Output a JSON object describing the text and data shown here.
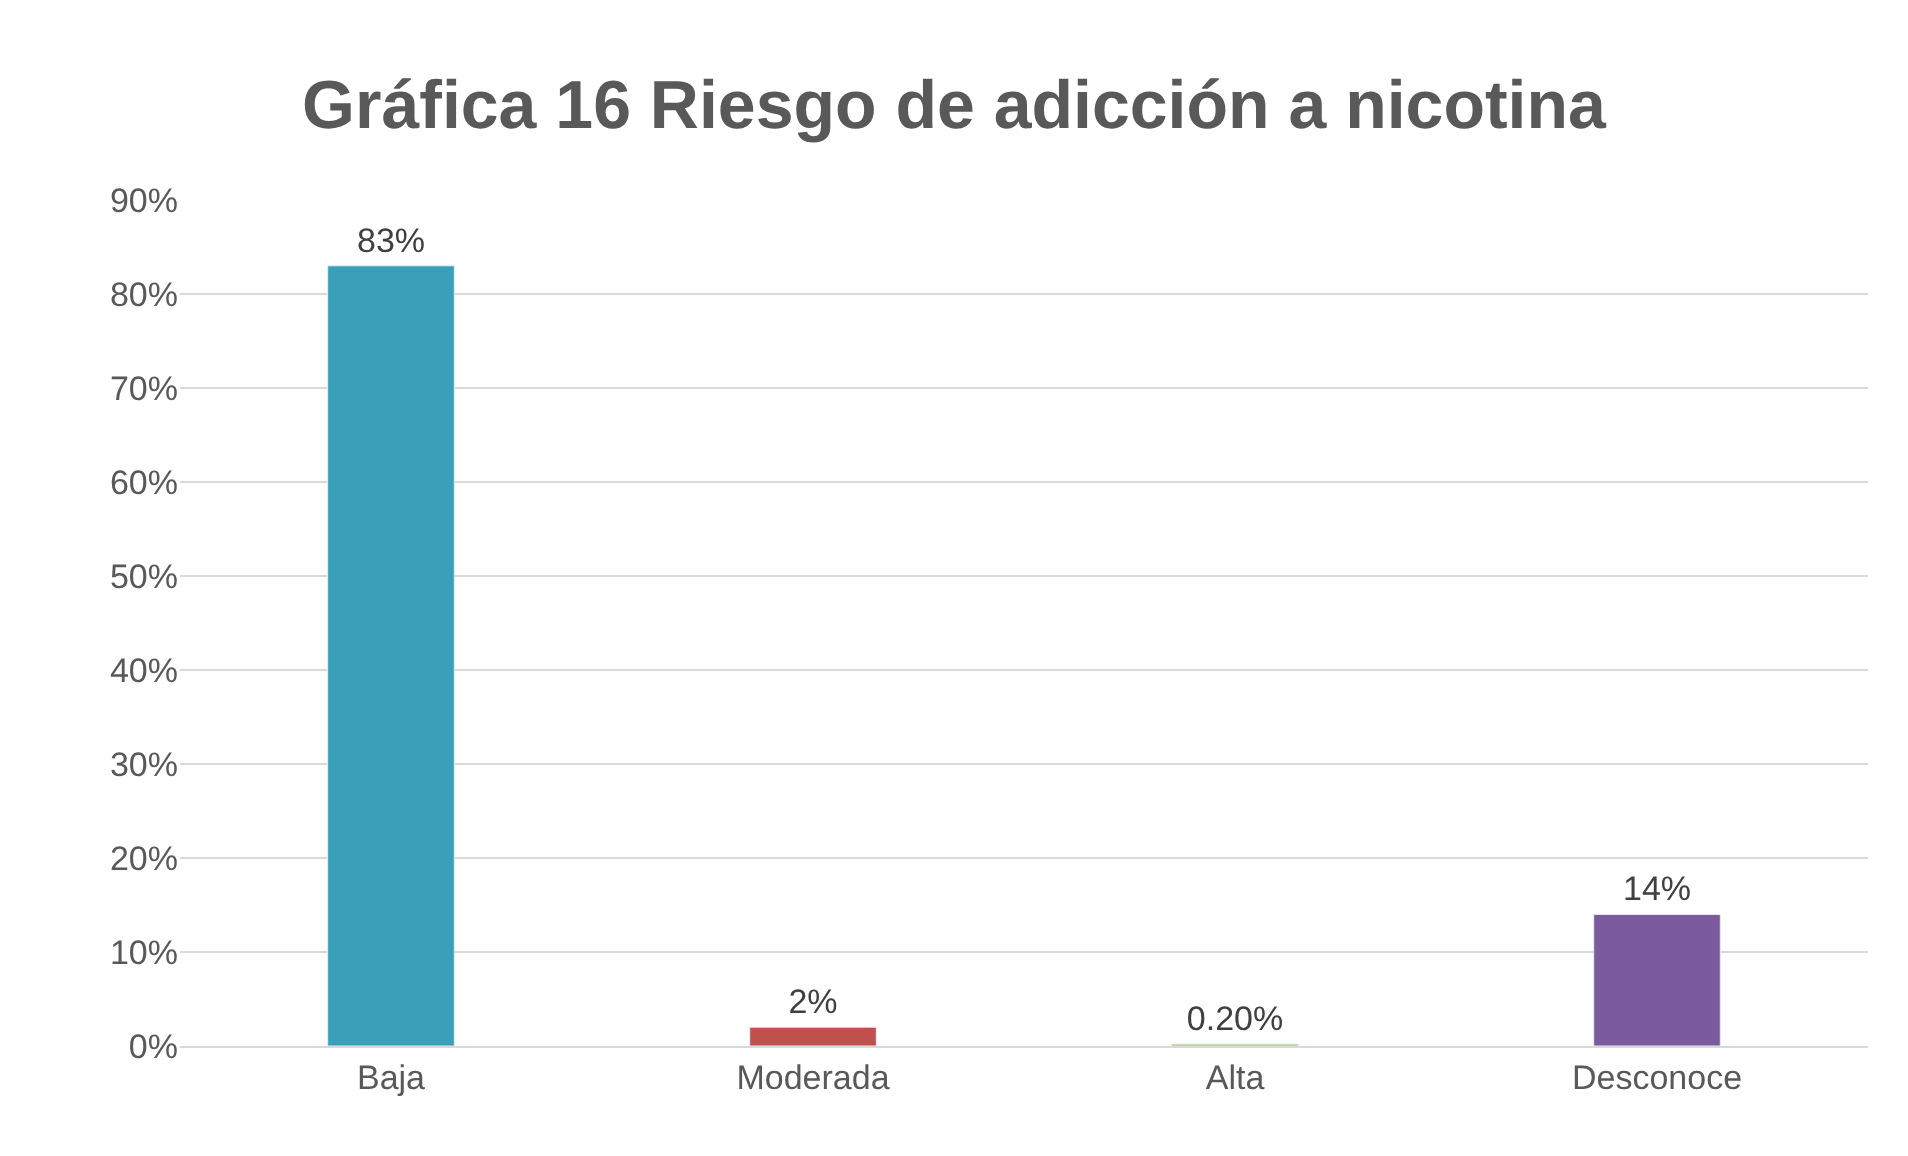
{
  "chart_data": {
    "type": "bar",
    "title": "Gráfica 16 Riesgo de adicción a nicotina",
    "categories": [
      "Baja",
      "Moderada",
      "Alta",
      "Desconoce"
    ],
    "values": [
      83,
      2,
      0.2,
      14
    ],
    "value_labels": [
      "83%",
      "2%",
      "0.20%",
      "14%"
    ],
    "colors": [
      "#3a9fb8",
      "#c0504d",
      "#9bbb59",
      "#7b5a9e"
    ],
    "ylim": [
      0,
      90
    ],
    "yticks": [
      {
        "value": 0,
        "label": "0%"
      },
      {
        "value": 10,
        "label": "10%"
      },
      {
        "value": 20,
        "label": "20%"
      },
      {
        "value": 30,
        "label": "30%"
      },
      {
        "value": 40,
        "label": "40%"
      },
      {
        "value": 50,
        "label": "50%"
      },
      {
        "value": 60,
        "label": "60%"
      },
      {
        "value": 70,
        "label": "70%"
      },
      {
        "value": 80,
        "label": "80%"
      },
      {
        "value": 90,
        "label": "90%"
      }
    ],
    "grid": "y",
    "legend": false
  }
}
